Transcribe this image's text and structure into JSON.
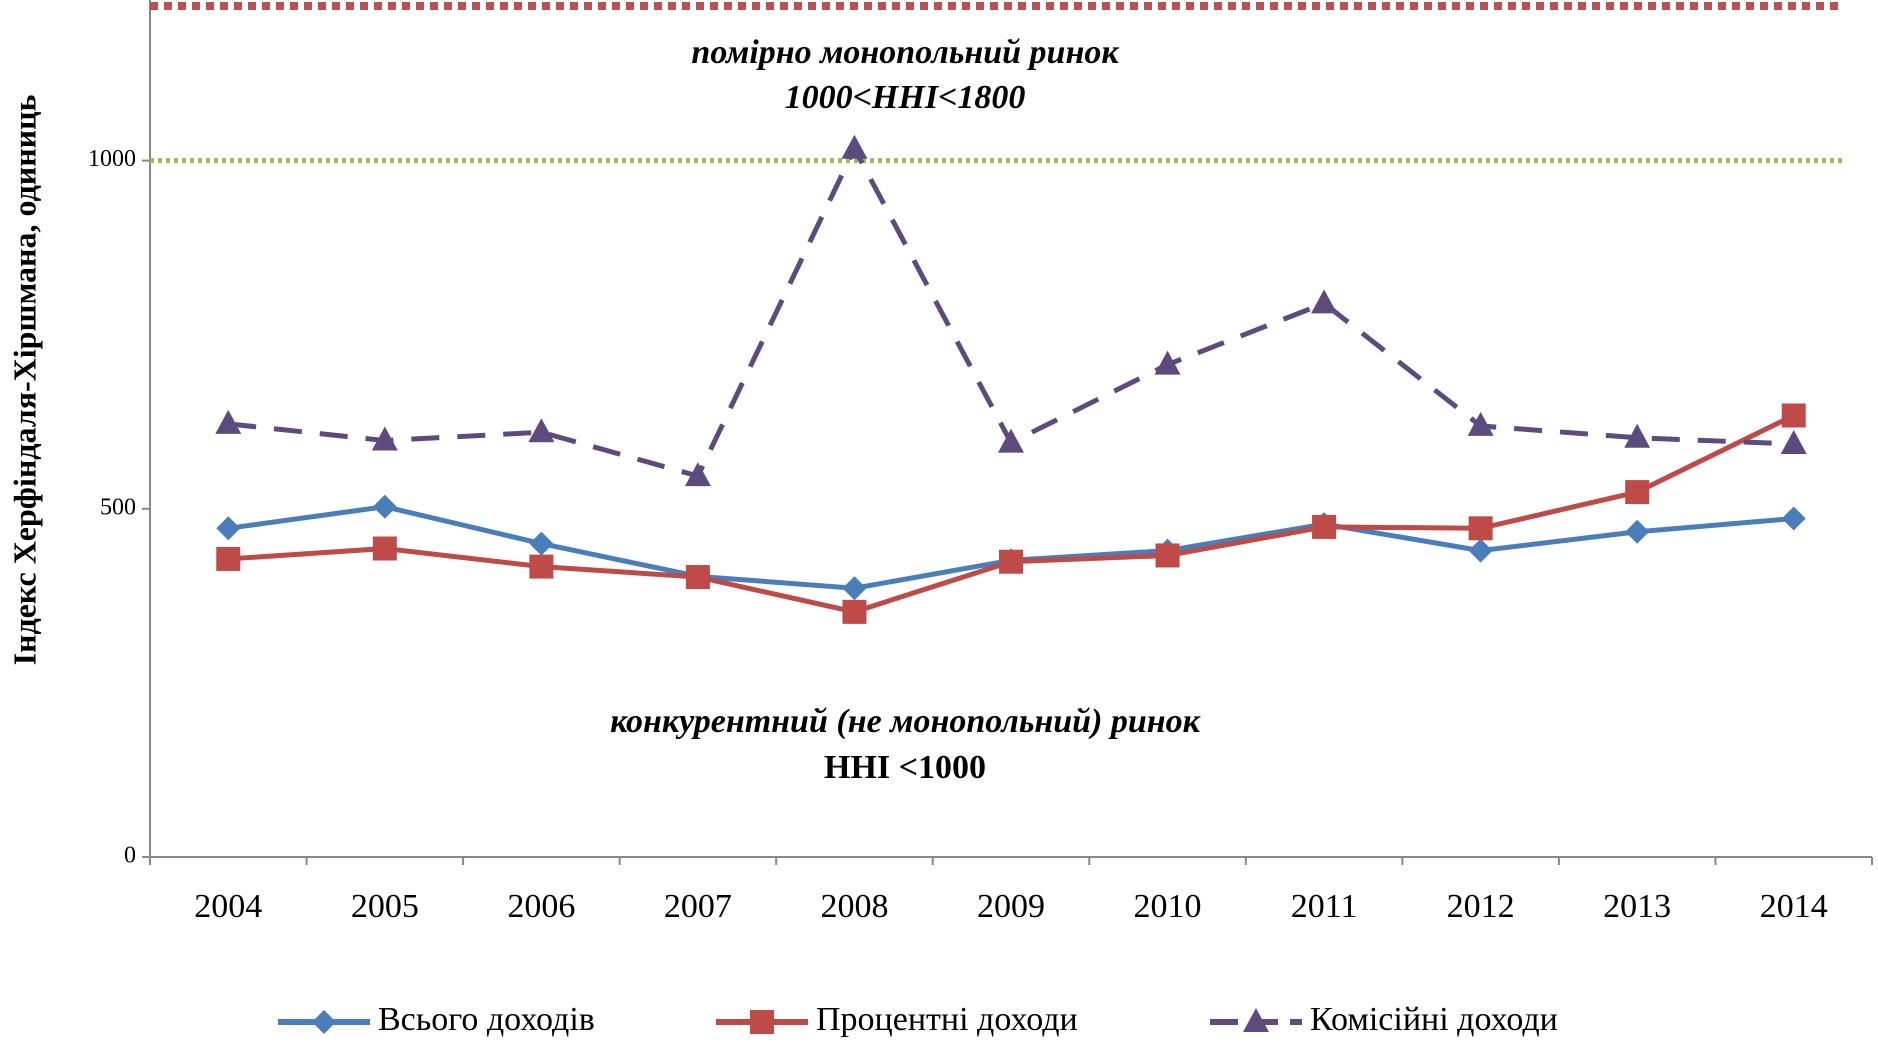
{
  "chart_data": {
    "type": "line",
    "y_label": "Індекс Херфіндаля-Хіршмана, одиниць",
    "categories": [
      "2004",
      "2005",
      "2006",
      "2007",
      "2008",
      "2009",
      "2010",
      "2011",
      "2012",
      "2013",
      "2014"
    ],
    "series": [
      {
        "name": "Всього доходів",
        "color": "#4a7ebb",
        "marker": "diamond",
        "dash": false,
        "values": [
          472,
          503,
          450,
          403,
          386,
          426,
          440,
          478,
          440,
          467,
          486
        ]
      },
      {
        "name": "Процентні доходи",
        "color": "#be4b48",
        "marker": "square",
        "dash": false,
        "values": [
          428,
          443,
          417,
          402,
          352,
          424,
          433,
          474,
          472,
          524,
          634
        ]
      },
      {
        "name": "Комісійні доходи",
        "color": "#5e4b7e",
        "marker": "triangle",
        "dash": true,
        "values": [
          622,
          598,
          610,
          547,
          1017,
          595,
          707,
          795,
          619,
          602,
          593
        ]
      }
    ],
    "ylim": [
      0,
      1222
    ],
    "yticks": [
      0,
      500,
      1000
    ],
    "reference_lines": [
      {
        "value": 1000,
        "color": "#9bbb59"
      },
      {
        "value": 1222,
        "color": "#c0504d"
      }
    ],
    "annotations": [
      "помірно монопольний ринок",
      "1000<ННІ<1800",
      "конкурентний (не монопольний) ринок",
      "ННІ <1000"
    ],
    "legend": "bottom"
  }
}
